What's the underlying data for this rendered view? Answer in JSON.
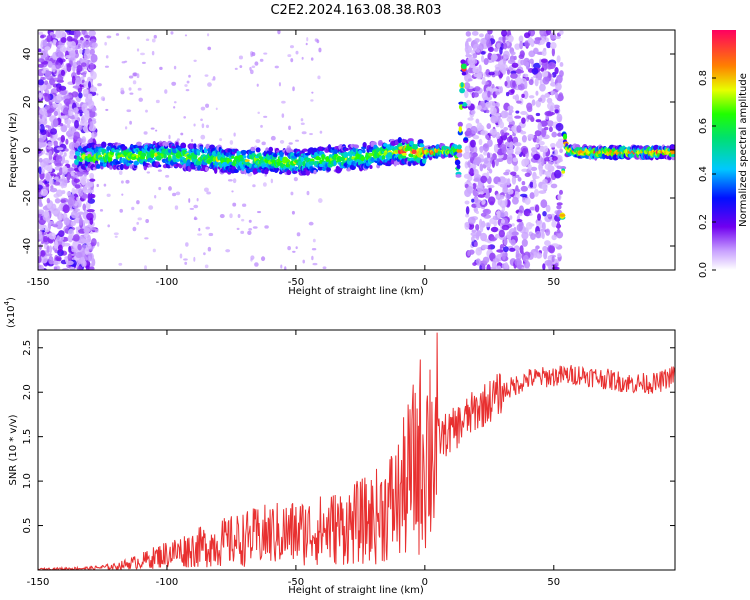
{
  "title": "C2E2.2024.163.08.38.R03",
  "chart_data": [
    {
      "type": "heatmap",
      "xlabel": "Height of straight line (km)",
      "ylabel": "Frequency (Hz)",
      "xlim": [
        -150,
        97
      ],
      "ylim": [
        -50,
        50
      ],
      "xticks": [
        -150,
        -100,
        -50,
        0,
        50
      ],
      "yticks": [
        -40,
        -20,
        0,
        20,
        40
      ],
      "colorbar": {
        "label": "Normalized spectral amplitude",
        "range": [
          0,
          1
        ],
        "ticks": [
          "0.0",
          "0.2",
          "0.4",
          "0.6",
          "0.8"
        ],
        "tick_values": [
          0,
          0.2,
          0.4,
          0.6,
          0.8
        ]
      },
      "ridge_frequency": {
        "x": [
          -135,
          -100,
          -80,
          -50,
          -25,
          -10,
          0,
          12,
          13,
          15,
          16,
          53,
          54,
          55,
          60,
          97
        ],
        "y": [
          -3,
          -2,
          -4,
          -5,
          -3,
          -0.5,
          -1,
          0,
          -10,
          40,
          0,
          -42,
          8,
          0,
          -1,
          -1
        ]
      },
      "noisy_bands_x": [
        [
          -150,
          -128
        ],
        [
          16,
          53
        ]
      ],
      "grid": false
    },
    {
      "type": "line",
      "xlabel": "Height of straight line (km)",
      "ylabel": "SNR (10 * v/v)",
      "y_multiplier_label": "(x10^4)",
      "xlim": [
        -150,
        97
      ],
      "ylim": [
        0,
        2.7
      ],
      "xticks": [
        -150,
        -100,
        -50,
        0,
        50
      ],
      "yticks": [
        0.5,
        1.0,
        1.5,
        2.0,
        2.5
      ],
      "ytick_labels": [
        "0.5",
        "1.0",
        "1.5",
        "2.0",
        "2.5"
      ],
      "series": [
        {
          "color": "#e83030",
          "x": [
            -150,
            -130,
            -120,
            -110,
            -100,
            -90,
            -80,
            -70,
            -60,
            -50,
            -40,
            -30,
            -20,
            -10,
            0,
            10,
            20,
            30,
            40,
            50,
            60,
            70,
            80,
            90,
            97
          ],
          "y": [
            0.01,
            0.02,
            0.04,
            0.1,
            0.18,
            0.24,
            0.3,
            0.35,
            0.4,
            0.42,
            0.45,
            0.5,
            0.58,
            0.8,
            1.4,
            1.55,
            1.8,
            2.0,
            2.15,
            2.18,
            2.2,
            2.15,
            2.1,
            2.1,
            2.2
          ]
        }
      ],
      "grid": false
    }
  ]
}
